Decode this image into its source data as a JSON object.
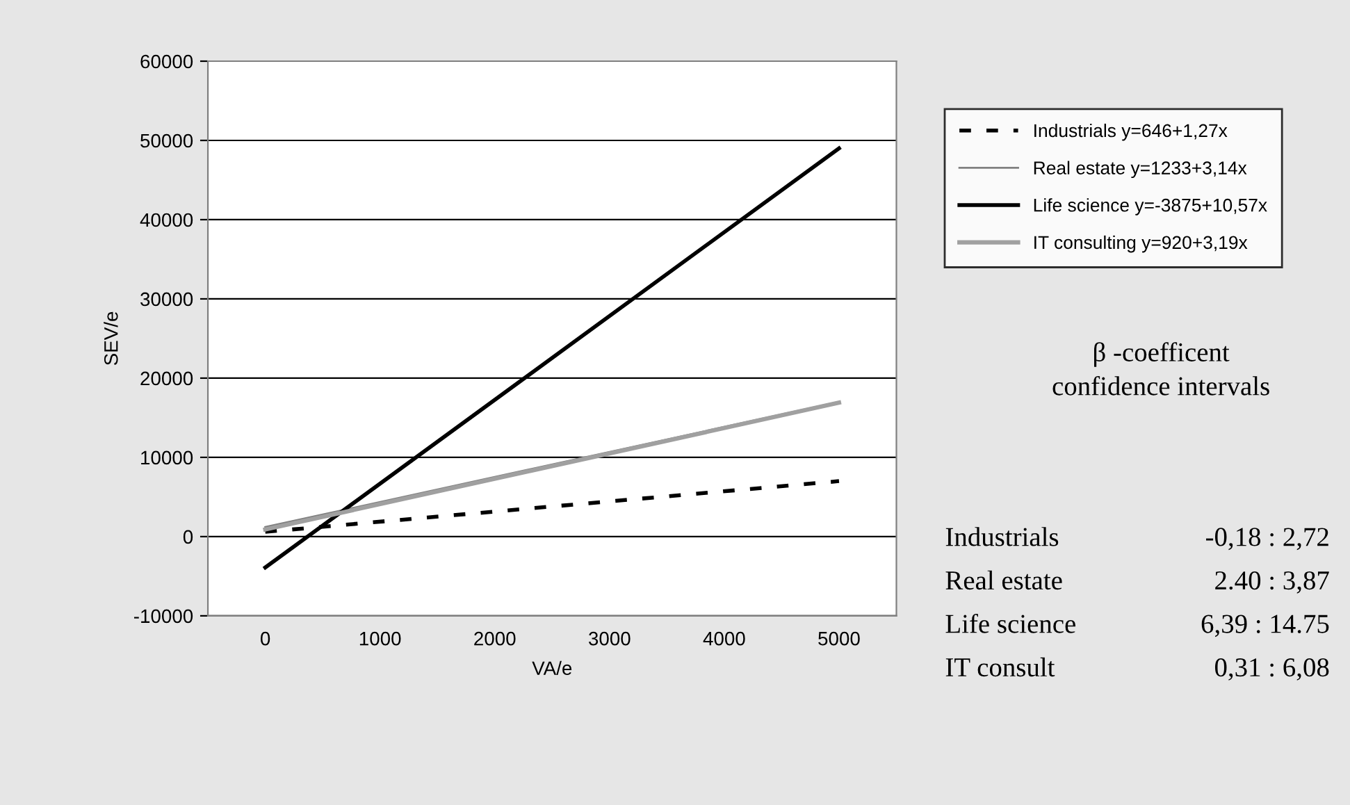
{
  "chart_data": {
    "type": "line",
    "xlabel": "VA/e",
    "ylabel": "SEV/e",
    "x": [
      0,
      5000
    ],
    "xlim": [
      -500,
      5500
    ],
    "xticks": [
      0,
      1000,
      2000,
      3000,
      4000,
      5000
    ],
    "ylim": [
      -10000,
      60000
    ],
    "yticks": [
      -10000,
      0,
      10000,
      20000,
      30000,
      40000,
      50000,
      60000
    ],
    "grid": "y",
    "legend": "right",
    "marker": "none",
    "series": [
      {
        "name": "Industrials y=646+1,27x",
        "color": "#000000",
        "line_style": "dotted",
        "values": [
          600,
          7000
        ]
      },
      {
        "name": "Real estate y=1233+3,14x",
        "color": "#808080",
        "line_style": "solid",
        "values": [
          1200,
          17000
        ]
      },
      {
        "name": "Life science y=-3875+10,57x",
        "color": "#000000",
        "line_style": "solid",
        "values": [
          -3900,
          49000
        ]
      },
      {
        "name": "IT consulting y=920+3,19x",
        "color": "#a0a0a0",
        "line_style": "solid",
        "values": [
          900,
          16900
        ]
      }
    ],
    "annotations": [
      "β -coefficent\nconfidence intervals",
      "Industrials",
      "-0,18 : 2,72",
      "Real estate",
      "2.40 : 3,87",
      "Life science",
      "6,39 : 14.75",
      "IT consult",
      "0,31 : 6,08"
    ]
  }
}
